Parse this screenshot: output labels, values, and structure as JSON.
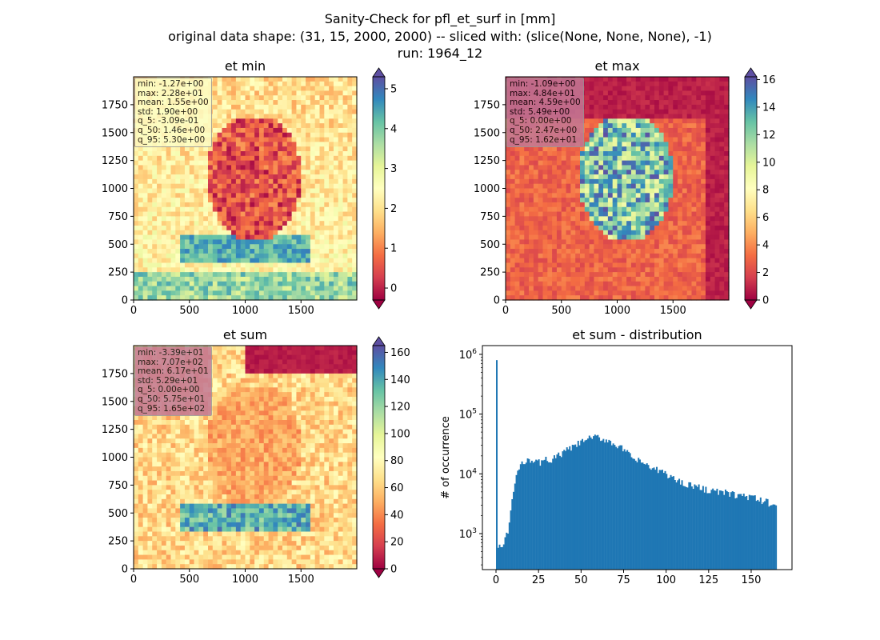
{
  "suptitle": {
    "line1": "Sanity-Check for pfl_et_surf in [mm]",
    "line2": "original data shape: (31, 15, 2000, 2000) -- sliced with: (slice(None, None, None), -1)",
    "line3": "run: 1964_12"
  },
  "colors": {
    "spectral": [
      "#9e0142",
      "#d53e4f",
      "#f46d43",
      "#fdae61",
      "#fee08b",
      "#ffffbf",
      "#e6f598",
      "#abdda4",
      "#66c2a5",
      "#3288bd",
      "#5e4fa2"
    ],
    "hist_bar": "#1f77b4",
    "statbox_min": "#fdfdc4",
    "statbox_max": "#c37895",
    "statbox_sum": "#c37895"
  },
  "chart_data": [
    {
      "type": "heatmap",
      "title": "et min",
      "xlim": [
        0,
        2000
      ],
      "ylim": [
        0,
        2000
      ],
      "xticks": [
        0,
        500,
        1000,
        1500
      ],
      "yticks": [
        0,
        250,
        500,
        750,
        1000,
        1250,
        1500,
        1750
      ],
      "colorbar": {
        "range": [
          -0.3,
          5.3
        ],
        "ticks": [
          0,
          1,
          2,
          3,
          4,
          5
        ],
        "colormap": "Spectral",
        "extend": "both"
      },
      "stats": [
        "min: -1.27e+00",
        "max: 2.28e+01",
        "mean: 1.55e+00",
        "std: 1.90e+00",
        "q_5: -3.09e-01",
        "q_50: 1.46e+00",
        "q_95: 5.30e+00"
      ]
    },
    {
      "type": "heatmap",
      "title": "et max",
      "xlim": [
        0,
        2000
      ],
      "ylim": [
        0,
        2000
      ],
      "xticks": [
        0,
        500,
        1000,
        1500
      ],
      "yticks": [
        0,
        250,
        500,
        750,
        1000,
        1250,
        1500,
        1750
      ],
      "colorbar": {
        "range": [
          0,
          16.2
        ],
        "ticks": [
          0,
          2,
          4,
          6,
          8,
          10,
          12,
          14,
          16
        ],
        "colormap": "Spectral",
        "extend": "both"
      },
      "stats": [
        "min: -1.09e+00",
        "max: 4.84e+01",
        "mean: 4.59e+00",
        "std: 5.49e+00",
        "q_5: 0.00e+00",
        "q_50: 2.47e+00",
        "q_95: 1.62e+01"
      ]
    },
    {
      "type": "heatmap",
      "title": "et sum",
      "xlim": [
        0,
        2000
      ],
      "ylim": [
        0,
        2000
      ],
      "xticks": [
        0,
        500,
        1000,
        1500
      ],
      "yticks": [
        0,
        250,
        500,
        750,
        1000,
        1250,
        1500,
        1750
      ],
      "colorbar": {
        "range": [
          0,
          165
        ],
        "ticks": [
          0,
          20,
          40,
          60,
          80,
          100,
          120,
          140,
          160
        ],
        "colormap": "Spectral",
        "extend": "both"
      },
      "stats": [
        "min: -3.39e+01",
        "max: 7.07e+02",
        "mean: 6.17e+01",
        "std: 5.29e+01",
        "q_5: 0.00e+00",
        "q_50: 5.75e+01",
        "q_95: 1.65e+02"
      ]
    },
    {
      "type": "bar",
      "title": "et sum - distribution",
      "ylabel": "# of occurrence",
      "xlabel": "",
      "yscale": "log",
      "xlim": [
        -8,
        174
      ],
      "ylim": [
        250,
        1400000
      ],
      "xticks": [
        0,
        25,
        50,
        75,
        100,
        125,
        150
      ],
      "yticks": [
        {
          "value": 1000,
          "label": "10^3"
        },
        {
          "value": 10000,
          "label": "10^4"
        },
        {
          "value": 100000,
          "label": "10^5"
        },
        {
          "value": 1000000,
          "label": "10^6"
        }
      ],
      "bins": {
        "start": 0,
        "end": 165,
        "count": 200
      },
      "spike": {
        "x": 0,
        "value": 800000
      },
      "envelope": [
        [
          0.8,
          400
        ],
        [
          1.5,
          900
        ],
        [
          2.5,
          550
        ],
        [
          4,
          600
        ],
        [
          5,
          750
        ],
        [
          6,
          900
        ],
        [
          7,
          1000
        ],
        [
          8,
          1800
        ],
        [
          10,
          4500
        ],
        [
          12,
          9500
        ],
        [
          14,
          13000
        ],
        [
          16,
          15000
        ],
        [
          18,
          18000
        ],
        [
          20,
          18000
        ],
        [
          22,
          16000
        ],
        [
          25,
          15500
        ],
        [
          28,
          16000
        ],
        [
          30,
          18000
        ],
        [
          32,
          17000
        ],
        [
          35,
          19000
        ],
        [
          38,
          21000
        ],
        [
          40,
          23000
        ],
        [
          42,
          25000
        ],
        [
          45,
          28000
        ],
        [
          48,
          31000
        ],
        [
          50,
          34000
        ],
        [
          52,
          37000
        ],
        [
          55,
          39000
        ],
        [
          57,
          41000
        ],
        [
          60,
          40000
        ],
        [
          62,
          39000
        ],
        [
          65,
          37000
        ],
        [
          68,
          34000
        ],
        [
          70,
          31000
        ],
        [
          73,
          28000
        ],
        [
          75,
          25000
        ],
        [
          78,
          21000
        ],
        [
          80,
          18000
        ],
        [
          83,
          17000
        ],
        [
          85,
          15500
        ],
        [
          88,
          15000
        ],
        [
          90,
          13000
        ],
        [
          93,
          11500
        ],
        [
          95,
          11500
        ],
        [
          98,
          11000
        ],
        [
          100,
          10000
        ],
        [
          103,
          9000
        ],
        [
          105,
          8000
        ],
        [
          108,
          7500
        ],
        [
          110,
          7000
        ],
        [
          113,
          6800
        ],
        [
          115,
          6500
        ],
        [
          118,
          6000
        ],
        [
          120,
          5800
        ],
        [
          123,
          5600
        ],
        [
          125,
          5400
        ],
        [
          128,
          5200
        ],
        [
          130,
          5000
        ],
        [
          133,
          4900
        ],
        [
          135,
          4800
        ],
        [
          138,
          4600
        ],
        [
          140,
          4500
        ],
        [
          143,
          4400
        ],
        [
          145,
          4300
        ],
        [
          148,
          4200
        ],
        [
          150,
          4000
        ],
        [
          153,
          3800
        ],
        [
          155,
          3600
        ],
        [
          158,
          3500
        ],
        [
          160,
          3300
        ],
        [
          163,
          3100
        ],
        [
          165,
          3000
        ]
      ]
    }
  ]
}
